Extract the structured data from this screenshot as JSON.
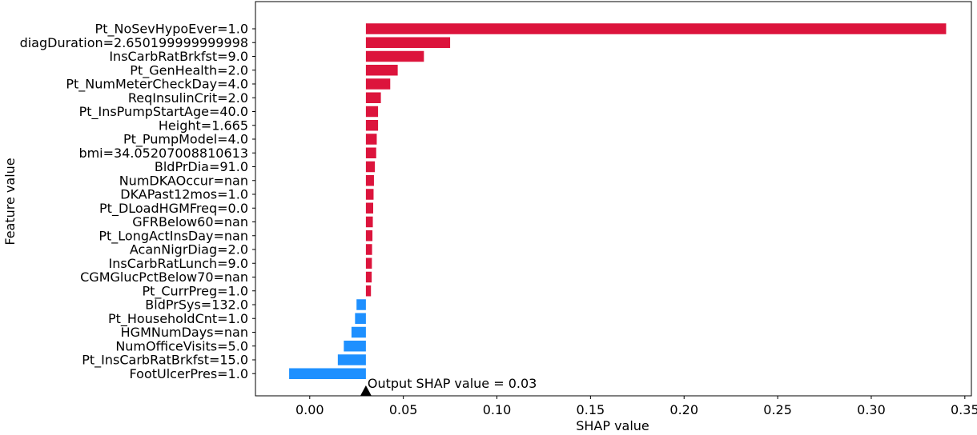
{
  "chart_data": {
    "type": "bar",
    "orientation": "horizontal",
    "title": "",
    "xlabel": "SHAP value",
    "ylabel": "Feature value",
    "xlim": [
      -0.029,
      0.3535
    ],
    "xticks": [
      "0.00",
      "0.05",
      "0.10",
      "0.15",
      "0.20",
      "0.25",
      "0.30",
      "0.35"
    ],
    "tick_values": [
      0.0,
      0.05,
      0.1,
      0.15,
      0.2,
      0.25,
      0.3,
      0.35
    ],
    "base_value": 0.03,
    "grid": false,
    "legend": "none",
    "colors": {
      "positive": "#dc143c",
      "negative": "#1e90ff"
    },
    "annotation": "Output SHAP value = 0.03",
    "categories": [
      "Pt_NoSevHypoEver=1.0",
      "diagDuration=2.650199999999998",
      "InsCarbRatBrkfst=9.0",
      "Pt_GenHealth=2.0",
      "Pt_NumMeterCheckDay=4.0",
      "ReqInsulinCrit=2.0",
      "Pt_InsPumpStartAge=40.0",
      "Height=1.665",
      "Pt_PumpModel=4.0",
      "bmi=34.05207008810613",
      "BldPrDia=91.0",
      "NumDKAOccur=nan",
      "DKAPast12mos=1.0",
      "Pt_DLoadHGMFreq=0.0",
      "GFRBelow60=nan",
      "Pt_LongActInsDay=nan",
      "AcanNigrDiag=2.0",
      "InsCarbRatLunch=9.0",
      "CGMGlucPctBelow70=nan",
      "Pt_CurrPreg=1.0",
      "BldPrSys=132.0",
      "Pt_HouseholdCnt=1.0",
      "HGMNumDays=nan",
      "NumOfficeVisits=5.0",
      "Pt_InsCarbRatBrkfst=15.0",
      "FootUlcerPres=1.0"
    ],
    "values": [
      0.31,
      0.045,
      0.031,
      0.017,
      0.013,
      0.008,
      0.0065,
      0.0065,
      0.0058,
      0.0055,
      0.0048,
      0.0043,
      0.0041,
      0.0039,
      0.0037,
      0.0035,
      0.0033,
      0.0032,
      0.0031,
      0.0027,
      -0.005,
      -0.0058,
      -0.0077,
      -0.0118,
      -0.015,
      -0.041
    ]
  }
}
